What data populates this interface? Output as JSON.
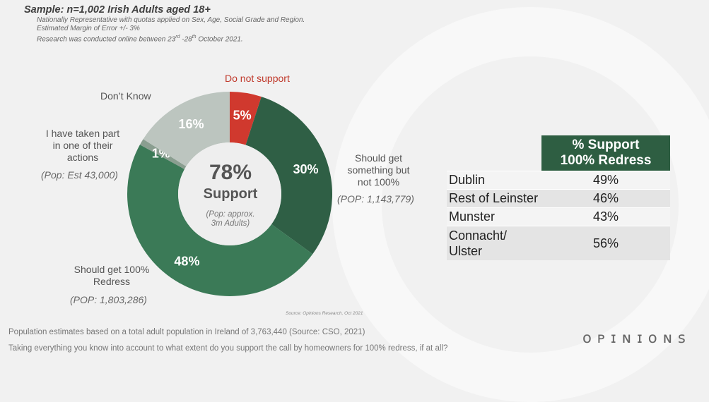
{
  "sample": {
    "title": "Sample: n=1,002 Irish Adults aged 18+",
    "notes": [
      "Nationally Representative with quotas applied on Sex, Age, Social Grade and Region.",
      "Estimated Margin of Error +/- 3%",
      "Research was conducted online between 23rd -28th October 2021."
    ]
  },
  "chart_data": {
    "type": "pie",
    "categories": [
      "Do not support",
      "Should get something but not 100%",
      "Should get 100% Redress",
      "I have taken part in one of their actions",
      "Don't Know"
    ],
    "values": [
      5,
      30,
      48,
      1,
      16
    ],
    "value_labels": [
      "5%",
      "30%",
      "48%",
      "1%",
      "16%"
    ],
    "colors": [
      "#d0392e",
      "#2f5f45",
      "#3b7a57",
      "#8a9e90",
      "#bcc5bf"
    ],
    "center": {
      "value": "78%",
      "label": "Support",
      "pop": [
        "(Pop: approx.",
        "3m Adults)"
      ]
    },
    "outside_labels": {
      "do_not_support": "Do not support",
      "dont_know": "Don’t Know",
      "taken_part": [
        "I have taken part",
        "in one of their",
        "actions"
      ],
      "taken_part_pop": "(Pop: Est 43,000)",
      "something_not_full": [
        "Should get",
        "something but",
        "not 100%"
      ],
      "something_pop": "(POP: 1,143,779)",
      "full_redress": [
        "Should get 100%",
        "Redress"
      ],
      "full_redress_pop": "(POP: 1,803,286)"
    }
  },
  "region_table": {
    "header": [
      "% Support",
      "100% Redress"
    ],
    "rows": [
      {
        "region": "Dublin",
        "value": "49%"
      },
      {
        "region": "Rest of Leinster",
        "value": "46%"
      },
      {
        "region": "Munster",
        "value": "43%"
      },
      {
        "region": "Connacht/ Ulster",
        "value": "56%",
        "lines": [
          "Connacht/",
          "Ulster"
        ]
      }
    ],
    "header_color": "#2e5e42"
  },
  "source": "Source: Opinions Research, Oct 2021",
  "footer": {
    "population_note": "Population estimates based on a total adult population in Ireland of  3,763,440 (Source: CSO, 2021)",
    "question": "Taking everything you know into account to what extent do you support the call by homeowners for 100% redress, if at all?"
  },
  "logo": "OPINIONS"
}
